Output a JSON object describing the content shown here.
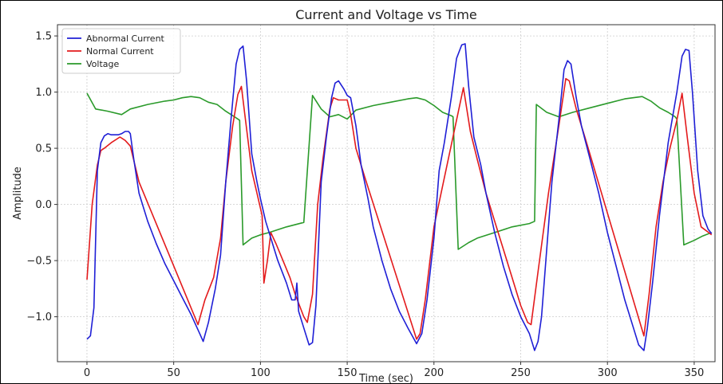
{
  "chart_data": {
    "type": "line",
    "title": "Current and Voltage vs Time",
    "xlabel": "Time (sec)",
    "ylabel": "Amplitude",
    "xlim": [
      -17,
      362
    ],
    "ylim": [
      -1.4,
      1.6
    ],
    "xticks": [
      0,
      50,
      100,
      150,
      200,
      250,
      300,
      350
    ],
    "xtick_labels": [
      "0",
      "50",
      "100",
      "150",
      "200",
      "250",
      "300",
      "350"
    ],
    "yticks": [
      -1.0,
      -0.5,
      0.0,
      0.5,
      1.0,
      1.5
    ],
    "ytick_labels": [
      "−1.0",
      "−0.5",
      "0.0",
      "0.5",
      "1.0",
      "1.5"
    ],
    "grid": true,
    "legend_position": "top-left",
    "series": [
      {
        "name": "Abnormal Current",
        "color": "#1f1fd6",
        "points": [
          [
            0,
            -1.2
          ],
          [
            2,
            -1.17
          ],
          [
            4,
            -0.92
          ],
          [
            6,
            0.3
          ],
          [
            8,
            0.55
          ],
          [
            10,
            0.61
          ],
          [
            12,
            0.63
          ],
          [
            14,
            0.62
          ],
          [
            18,
            0.62
          ],
          [
            20,
            0.63
          ],
          [
            22,
            0.65
          ],
          [
            24,
            0.65
          ],
          [
            25,
            0.63
          ],
          [
            27,
            0.4
          ],
          [
            30,
            0.1
          ],
          [
            35,
            -0.15
          ],
          [
            40,
            -0.35
          ],
          [
            45,
            -0.53
          ],
          [
            50,
            -0.68
          ],
          [
            55,
            -0.83
          ],
          [
            60,
            -0.98
          ],
          [
            65,
            -1.15
          ],
          [
            67,
            -1.22
          ],
          [
            70,
            -1.05
          ],
          [
            74,
            -0.75
          ],
          [
            77,
            -0.45
          ],
          [
            80,
            0.2
          ],
          [
            83,
            0.75
          ],
          [
            86,
            1.25
          ],
          [
            88,
            1.38
          ],
          [
            90,
            1.41
          ],
          [
            92,
            1.1
          ],
          [
            95,
            0.45
          ],
          [
            98,
            0.2
          ],
          [
            100,
            0.05
          ],
          [
            103,
            -0.15
          ],
          [
            106,
            -0.3
          ],
          [
            110,
            -0.5
          ],
          [
            115,
            -0.7
          ],
          [
            118,
            -0.85
          ],
          [
            120,
            -0.85
          ],
          [
            121,
            -0.7
          ],
          [
            122,
            -0.95
          ],
          [
            125,
            -1.1
          ],
          [
            128,
            -1.25
          ],
          [
            130,
            -1.23
          ],
          [
            132,
            -0.9
          ],
          [
            135,
            0.2
          ],
          [
            138,
            0.6
          ],
          [
            141,
            0.95
          ],
          [
            143,
            1.08
          ],
          [
            145,
            1.1
          ],
          [
            148,
            1.03
          ],
          [
            150,
            0.97
          ],
          [
            152,
            0.95
          ],
          [
            155,
            0.7
          ],
          [
            158,
            0.35
          ],
          [
            162,
            0.05
          ],
          [
            165,
            -0.2
          ],
          [
            170,
            -0.5
          ],
          [
            175,
            -0.75
          ],
          [
            180,
            -0.95
          ],
          [
            185,
            -1.1
          ],
          [
            190,
            -1.24
          ],
          [
            193,
            -1.15
          ],
          [
            196,
            -0.85
          ],
          [
            200,
            -0.3
          ],
          [
            203,
            0.3
          ],
          [
            206,
            0.55
          ],
          [
            210,
            0.95
          ],
          [
            213,
            1.3
          ],
          [
            216,
            1.42
          ],
          [
            218,
            1.43
          ],
          [
            220,
            1.05
          ],
          [
            223,
            0.6
          ],
          [
            227,
            0.35
          ],
          [
            230,
            0.1
          ],
          [
            235,
            -0.25
          ],
          [
            240,
            -0.55
          ],
          [
            245,
            -0.8
          ],
          [
            250,
            -1.0
          ],
          [
            255,
            -1.15
          ],
          [
            258,
            -1.3
          ],
          [
            260,
            -1.22
          ],
          [
            262,
            -1.0
          ],
          [
            265,
            -0.4
          ],
          [
            268,
            0.2
          ],
          [
            272,
            0.75
          ],
          [
            275,
            1.2
          ],
          [
            277,
            1.28
          ],
          [
            279,
            1.25
          ],
          [
            282,
            0.95
          ],
          [
            285,
            0.7
          ],
          [
            290,
            0.4
          ],
          [
            295,
            0.1
          ],
          [
            300,
            -0.25
          ],
          [
            305,
            -0.55
          ],
          [
            310,
            -0.85
          ],
          [
            315,
            -1.1
          ],
          [
            318,
            -1.25
          ],
          [
            321,
            -1.3
          ],
          [
            323,
            -1.1
          ],
          [
            326,
            -0.7
          ],
          [
            330,
            -0.1
          ],
          [
            335,
            0.55
          ],
          [
            340,
            1.0
          ],
          [
            343,
            1.32
          ],
          [
            345,
            1.38
          ],
          [
            347,
            1.37
          ],
          [
            349,
            1.0
          ],
          [
            352,
            0.3
          ],
          [
            355,
            -0.1
          ],
          [
            358,
            -0.22
          ],
          [
            360,
            -0.26
          ]
        ]
      },
      {
        "name": "Normal Current",
        "color": "#e31a1c",
        "points": [
          [
            0,
            -0.67
          ],
          [
            3,
            0.0
          ],
          [
            6,
            0.35
          ],
          [
            8,
            0.48
          ],
          [
            10,
            0.5
          ],
          [
            14,
            0.55
          ],
          [
            19,
            0.6
          ],
          [
            22,
            0.57
          ],
          [
            25,
            0.52
          ],
          [
            30,
            0.2
          ],
          [
            64,
            -1.07
          ],
          [
            68,
            -0.85
          ],
          [
            73,
            -0.65
          ],
          [
            77,
            -0.3
          ],
          [
            80,
            0.2
          ],
          [
            84,
            0.7
          ],
          [
            87,
            0.98
          ],
          [
            89,
            1.05
          ],
          [
            91,
            0.8
          ],
          [
            95,
            0.3
          ],
          [
            98,
            0.1
          ],
          [
            101,
            -0.1
          ],
          [
            102,
            -0.7
          ],
          [
            104,
            -0.5
          ],
          [
            106,
            -0.25
          ],
          [
            109,
            -0.35
          ],
          [
            113,
            -0.5
          ],
          [
            117,
            -0.65
          ],
          [
            120,
            -0.8
          ],
          [
            125,
            -1.0
          ],
          [
            127,
            -1.05
          ],
          [
            130,
            -0.8
          ],
          [
            133,
            0.0
          ],
          [
            136,
            0.4
          ],
          [
            140,
            0.85
          ],
          [
            142,
            0.95
          ],
          [
            145,
            0.93
          ],
          [
            150,
            0.93
          ],
          [
            152,
            0.8
          ],
          [
            155,
            0.5
          ],
          [
            160,
            0.25
          ],
          [
            190,
            -1.2
          ],
          [
            192,
            -1.15
          ],
          [
            195,
            -0.85
          ],
          [
            200,
            -0.2
          ],
          [
            217,
            1.04
          ],
          [
            221,
            0.65
          ],
          [
            225,
            0.4
          ],
          [
            230,
            0.1
          ],
          [
            240,
            -0.4
          ],
          [
            250,
            -0.9
          ],
          [
            254,
            -1.05
          ],
          [
            256,
            -1.07
          ],
          [
            260,
            -0.6
          ],
          [
            266,
            0.1
          ],
          [
            272,
            0.7
          ],
          [
            276,
            1.12
          ],
          [
            278,
            1.1
          ],
          [
            282,
            0.85
          ],
          [
            287,
            0.6
          ],
          [
            321,
            -1.17
          ],
          [
            324,
            -0.8
          ],
          [
            328,
            -0.2
          ],
          [
            332,
            0.2
          ],
          [
            336,
            0.5
          ],
          [
            340,
            0.75
          ],
          [
            343,
            0.99
          ],
          [
            346,
            0.6
          ],
          [
            350,
            0.1
          ],
          [
            354,
            -0.2
          ],
          [
            360,
            -0.27
          ]
        ]
      },
      {
        "name": "Voltage",
        "color": "#2a9a2a",
        "points": [
          [
            0,
            0.99
          ],
          [
            5,
            0.85
          ],
          [
            12,
            0.83
          ],
          [
            20,
            0.8
          ],
          [
            25,
            0.85
          ],
          [
            35,
            0.89
          ],
          [
            45,
            0.92
          ],
          [
            50,
            0.93
          ],
          [
            55,
            0.95
          ],
          [
            60,
            0.96
          ],
          [
            65,
            0.95
          ],
          [
            70,
            0.91
          ],
          [
            75,
            0.89
          ],
          [
            80,
            0.83
          ],
          [
            85,
            0.78
          ],
          [
            88,
            0.75
          ],
          [
            90,
            -0.36
          ],
          [
            95,
            -0.3
          ],
          [
            100,
            -0.27
          ],
          [
            105,
            -0.25
          ],
          [
            115,
            -0.2
          ],
          [
            125,
            -0.16
          ],
          [
            130,
            0.97
          ],
          [
            135,
            0.85
          ],
          [
            140,
            0.78
          ],
          [
            145,
            0.8
          ],
          [
            150,
            0.76
          ],
          [
            155,
            0.84
          ],
          [
            165,
            0.88
          ],
          [
            175,
            0.91
          ],
          [
            185,
            0.94
          ],
          [
            190,
            0.95
          ],
          [
            195,
            0.93
          ],
          [
            200,
            0.88
          ],
          [
            205,
            0.82
          ],
          [
            210,
            0.79
          ],
          [
            211,
            0.78
          ],
          [
            214,
            -0.4
          ],
          [
            220,
            -0.34
          ],
          [
            225,
            -0.3
          ],
          [
            235,
            -0.25
          ],
          [
            245,
            -0.2
          ],
          [
            255,
            -0.17
          ],
          [
            258,
            -0.15
          ],
          [
            259,
            0.89
          ],
          [
            265,
            0.82
          ],
          [
            272,
            0.78
          ],
          [
            280,
            0.82
          ],
          [
            290,
            0.86
          ],
          [
            300,
            0.9
          ],
          [
            310,
            0.94
          ],
          [
            320,
            0.96
          ],
          [
            325,
            0.92
          ],
          [
            330,
            0.86
          ],
          [
            335,
            0.82
          ],
          [
            339,
            0.78
          ],
          [
            340,
            0.76
          ],
          [
            344,
            -0.36
          ],
          [
            350,
            -0.32
          ],
          [
            355,
            -0.28
          ],
          [
            360,
            -0.25
          ]
        ]
      }
    ]
  }
}
